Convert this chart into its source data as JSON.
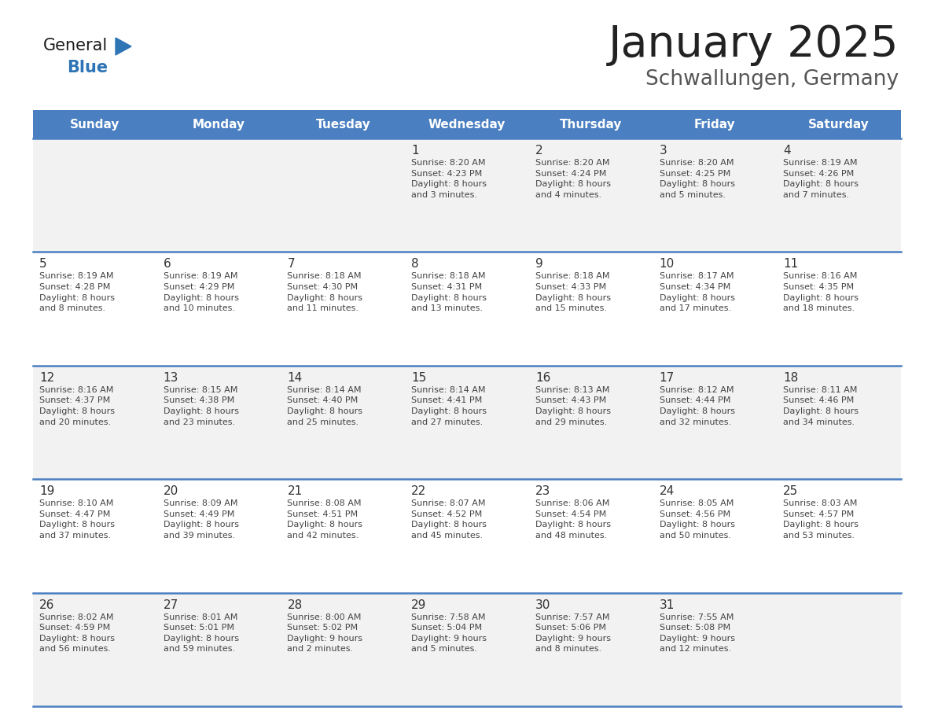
{
  "title": "January 2025",
  "subtitle": "Schwallungen, Germany",
  "days_of_week": [
    "Sunday",
    "Monday",
    "Tuesday",
    "Wednesday",
    "Thursday",
    "Friday",
    "Saturday"
  ],
  "header_bg": "#4a7fc1",
  "header_text": "#FFFFFF",
  "odd_row_bg": "#F2F2F2",
  "even_row_bg": "#FFFFFF",
  "cell_text_color": "#444444",
  "day_num_color": "#333333",
  "border_color": "#4a7fc1",
  "title_color": "#222222",
  "subtitle_color": "#555555",
  "calendar": [
    [
      {
        "day": "",
        "info": ""
      },
      {
        "day": "",
        "info": ""
      },
      {
        "day": "",
        "info": ""
      },
      {
        "day": "1",
        "info": "Sunrise: 8:20 AM\nSunset: 4:23 PM\nDaylight: 8 hours\nand 3 minutes."
      },
      {
        "day": "2",
        "info": "Sunrise: 8:20 AM\nSunset: 4:24 PM\nDaylight: 8 hours\nand 4 minutes."
      },
      {
        "day": "3",
        "info": "Sunrise: 8:20 AM\nSunset: 4:25 PM\nDaylight: 8 hours\nand 5 minutes."
      },
      {
        "day": "4",
        "info": "Sunrise: 8:19 AM\nSunset: 4:26 PM\nDaylight: 8 hours\nand 7 minutes."
      }
    ],
    [
      {
        "day": "5",
        "info": "Sunrise: 8:19 AM\nSunset: 4:28 PM\nDaylight: 8 hours\nand 8 minutes."
      },
      {
        "day": "6",
        "info": "Sunrise: 8:19 AM\nSunset: 4:29 PM\nDaylight: 8 hours\nand 10 minutes."
      },
      {
        "day": "7",
        "info": "Sunrise: 8:18 AM\nSunset: 4:30 PM\nDaylight: 8 hours\nand 11 minutes."
      },
      {
        "day": "8",
        "info": "Sunrise: 8:18 AM\nSunset: 4:31 PM\nDaylight: 8 hours\nand 13 minutes."
      },
      {
        "day": "9",
        "info": "Sunrise: 8:18 AM\nSunset: 4:33 PM\nDaylight: 8 hours\nand 15 minutes."
      },
      {
        "day": "10",
        "info": "Sunrise: 8:17 AM\nSunset: 4:34 PM\nDaylight: 8 hours\nand 17 minutes."
      },
      {
        "day": "11",
        "info": "Sunrise: 8:16 AM\nSunset: 4:35 PM\nDaylight: 8 hours\nand 18 minutes."
      }
    ],
    [
      {
        "day": "12",
        "info": "Sunrise: 8:16 AM\nSunset: 4:37 PM\nDaylight: 8 hours\nand 20 minutes."
      },
      {
        "day": "13",
        "info": "Sunrise: 8:15 AM\nSunset: 4:38 PM\nDaylight: 8 hours\nand 23 minutes."
      },
      {
        "day": "14",
        "info": "Sunrise: 8:14 AM\nSunset: 4:40 PM\nDaylight: 8 hours\nand 25 minutes."
      },
      {
        "day": "15",
        "info": "Sunrise: 8:14 AM\nSunset: 4:41 PM\nDaylight: 8 hours\nand 27 minutes."
      },
      {
        "day": "16",
        "info": "Sunrise: 8:13 AM\nSunset: 4:43 PM\nDaylight: 8 hours\nand 29 minutes."
      },
      {
        "day": "17",
        "info": "Sunrise: 8:12 AM\nSunset: 4:44 PM\nDaylight: 8 hours\nand 32 minutes."
      },
      {
        "day": "18",
        "info": "Sunrise: 8:11 AM\nSunset: 4:46 PM\nDaylight: 8 hours\nand 34 minutes."
      }
    ],
    [
      {
        "day": "19",
        "info": "Sunrise: 8:10 AM\nSunset: 4:47 PM\nDaylight: 8 hours\nand 37 minutes."
      },
      {
        "day": "20",
        "info": "Sunrise: 8:09 AM\nSunset: 4:49 PM\nDaylight: 8 hours\nand 39 minutes."
      },
      {
        "day": "21",
        "info": "Sunrise: 8:08 AM\nSunset: 4:51 PM\nDaylight: 8 hours\nand 42 minutes."
      },
      {
        "day": "22",
        "info": "Sunrise: 8:07 AM\nSunset: 4:52 PM\nDaylight: 8 hours\nand 45 minutes."
      },
      {
        "day": "23",
        "info": "Sunrise: 8:06 AM\nSunset: 4:54 PM\nDaylight: 8 hours\nand 48 minutes."
      },
      {
        "day": "24",
        "info": "Sunrise: 8:05 AM\nSunset: 4:56 PM\nDaylight: 8 hours\nand 50 minutes."
      },
      {
        "day": "25",
        "info": "Sunrise: 8:03 AM\nSunset: 4:57 PM\nDaylight: 8 hours\nand 53 minutes."
      }
    ],
    [
      {
        "day": "26",
        "info": "Sunrise: 8:02 AM\nSunset: 4:59 PM\nDaylight: 8 hours\nand 56 minutes."
      },
      {
        "day": "27",
        "info": "Sunrise: 8:01 AM\nSunset: 5:01 PM\nDaylight: 8 hours\nand 59 minutes."
      },
      {
        "day": "28",
        "info": "Sunrise: 8:00 AM\nSunset: 5:02 PM\nDaylight: 9 hours\nand 2 minutes."
      },
      {
        "day": "29",
        "info": "Sunrise: 7:58 AM\nSunset: 5:04 PM\nDaylight: 9 hours\nand 5 minutes."
      },
      {
        "day": "30",
        "info": "Sunrise: 7:57 AM\nSunset: 5:06 PM\nDaylight: 9 hours\nand 8 minutes."
      },
      {
        "day": "31",
        "info": "Sunrise: 7:55 AM\nSunset: 5:08 PM\nDaylight: 9 hours\nand 12 minutes."
      },
      {
        "day": "",
        "info": ""
      }
    ]
  ],
  "logo_general_color": "#1a1a1a",
  "logo_blue_color": "#2E75B6",
  "triangle_color": "#2E75B6"
}
